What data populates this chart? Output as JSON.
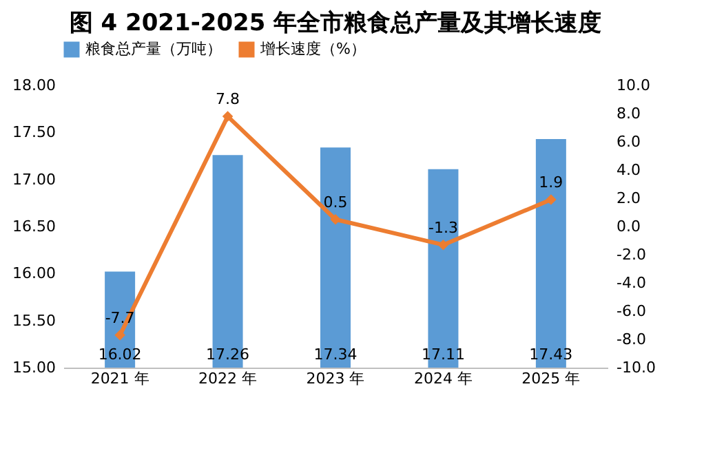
{
  "chart_data": {
    "type": "bar",
    "title": "图 4  2021-2025 年全市粮食总产量及其增长速度",
    "categories": [
      "2021 年",
      "2022 年",
      "2023 年",
      "2024 年",
      "2025 年"
    ],
    "series": [
      {
        "name": "粮食总产量（万吨）",
        "color": "#5b9bd5",
        "values": [
          16.02,
          17.26,
          17.34,
          17.11,
          17.43
        ]
      },
      {
        "name": "增长速度（%）",
        "type": "line",
        "axis": "y2",
        "color": "#ed7d31",
        "marker": "diamond",
        "line_style": "solid",
        "values": [
          -7.7,
          7.8,
          0.5,
          -1.3,
          1.9
        ]
      }
    ],
    "ylim": [
      15,
      18
    ],
    "yticks": [
      {
        "value": 15,
        "label": "15.00"
      },
      {
        "value": 15.5,
        "label": "15.50"
      },
      {
        "value": 16,
        "label": "16.00"
      },
      {
        "value": 16.5,
        "label": "16.50"
      },
      {
        "value": 17,
        "label": "17.00"
      },
      {
        "value": 17.5,
        "label": "17.50"
      },
      {
        "value": 18,
        "label": "18.00"
      }
    ],
    "y2lim": [
      -10,
      10
    ],
    "y2ticks": [
      {
        "value": -10,
        "label": "-10.0"
      },
      {
        "value": -8,
        "label": "-8.0"
      },
      {
        "value": -6,
        "label": "-6.0"
      },
      {
        "value": -4,
        "label": "-4.0"
      },
      {
        "value": -2,
        "label": "-2.0"
      },
      {
        "value": 0,
        "label": "0.0"
      },
      {
        "value": 2,
        "label": "2.0"
      },
      {
        "value": 4,
        "label": "4.0"
      },
      {
        "value": 6,
        "label": "6.0"
      },
      {
        "value": 8,
        "label": "8.0"
      },
      {
        "value": 10,
        "label": "10.0"
      }
    ],
    "data_labels": true,
    "legend": "top",
    "grid": false
  }
}
